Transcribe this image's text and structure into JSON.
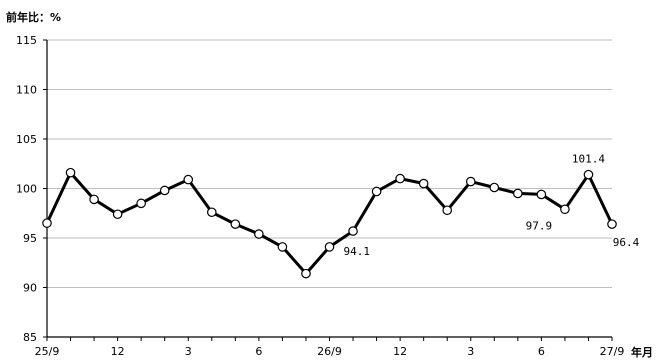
{
  "chart_data": {
    "type": "line",
    "ylabel": "前年比：%",
    "xunit": "年月",
    "ylim": [
      85,
      115
    ],
    "yticks": [
      85,
      90,
      95,
      100,
      105,
      110,
      115
    ],
    "grid": true,
    "xtick_labels": [
      {
        "index": 0,
        "label": "25/9"
      },
      {
        "index": 3,
        "label": "12"
      },
      {
        "index": 6,
        "label": "3"
      },
      {
        "index": 9,
        "label": "6"
      },
      {
        "index": 12,
        "label": "26/9"
      },
      {
        "index": 15,
        "label": "12"
      },
      {
        "index": 18,
        "label": "3"
      },
      {
        "index": 21,
        "label": "6"
      },
      {
        "index": 24,
        "label": "27/9"
      }
    ],
    "series": [
      {
        "values": [
          96.5,
          101.6,
          98.9,
          97.4,
          98.5,
          99.8,
          100.9,
          97.6,
          96.4,
          95.4,
          94.1,
          91.4,
          94.1,
          95.7,
          99.7,
          101.0,
          100.5,
          97.8,
          100.7,
          100.1,
          99.5,
          99.4,
          97.9,
          101.4,
          96.4
        ]
      }
    ],
    "data_labels": [
      {
        "index": 12,
        "text": "94.1",
        "pos": "right"
      },
      {
        "index": 22,
        "text": "97.9",
        "pos": "below-left"
      },
      {
        "index": 23,
        "text": "101.4",
        "pos": "above"
      },
      {
        "index": 24,
        "text": "96.4",
        "pos": "below"
      }
    ]
  }
}
